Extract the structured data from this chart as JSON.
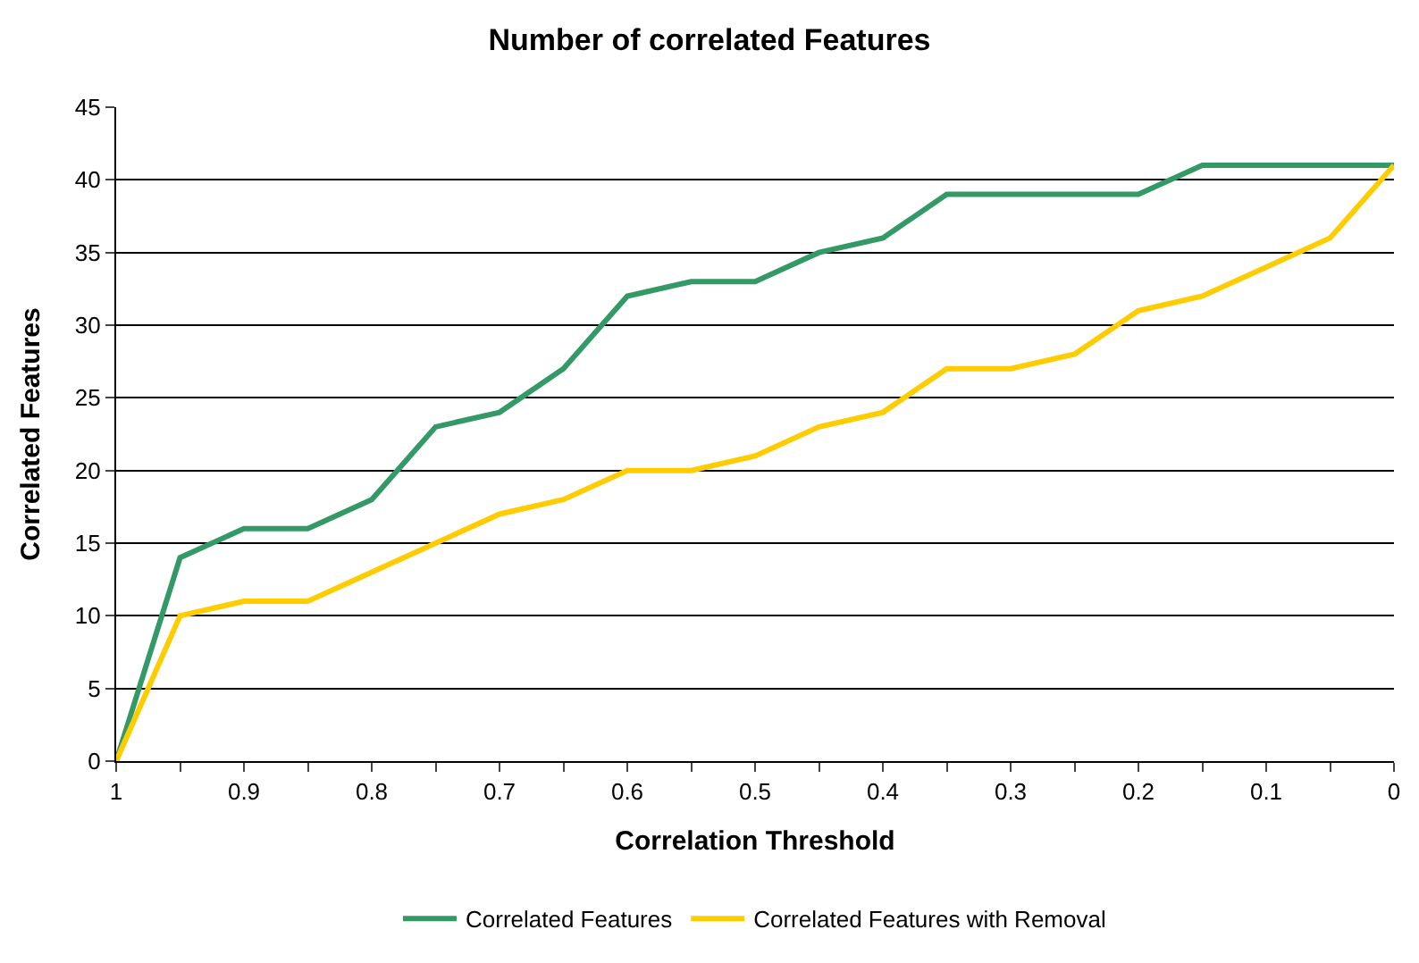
{
  "chart_data": {
    "type": "line",
    "title": "Number of correlated Features",
    "xlabel": "Correlation Threshold",
    "ylabel": "Correlated Features",
    "categories": [
      "1",
      null,
      "0.9",
      null,
      "0.8",
      null,
      "0.7",
      null,
      "0.6",
      null,
      "0.5",
      null,
      "0.4",
      null,
      "0.3",
      null,
      "0.2",
      null,
      "0.1",
      null,
      "0"
    ],
    "series": [
      {
        "name": "Correlated Features",
        "color": "#339966",
        "values": [
          0,
          14,
          16,
          16,
          18,
          23,
          24,
          27,
          32,
          33,
          33,
          35,
          36,
          39,
          39,
          39,
          39,
          41,
          41,
          41,
          41
        ]
      },
      {
        "name": "Correlated Features with Removal",
        "color": "#ffcc00",
        "values": [
          0,
          10,
          11,
          11,
          13,
          15,
          17,
          18,
          20,
          20,
          21,
          23,
          24,
          27,
          27,
          28,
          31,
          32,
          34,
          36,
          41
        ]
      }
    ],
    "ylim": [
      0,
      45
    ],
    "yticks": [
      0,
      5,
      10,
      15,
      20,
      25,
      30,
      35,
      40,
      45
    ],
    "grid": "y",
    "legend": "bottom",
    "marker": "none",
    "line_style": "solid"
  }
}
